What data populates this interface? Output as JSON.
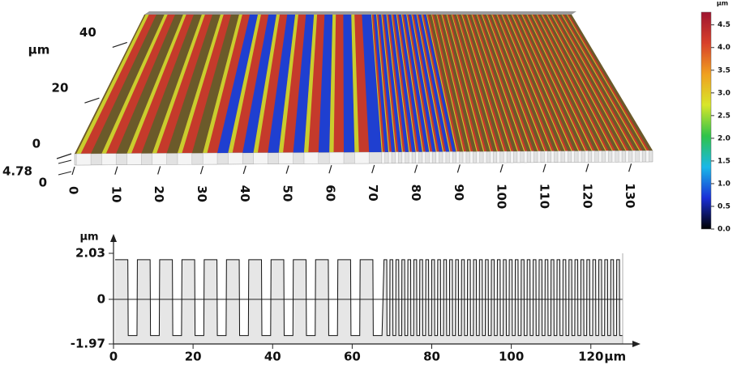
{
  "chart_data": [
    {
      "type": "surface3d",
      "xlim": [
        0,
        135
      ],
      "xticks": [
        0,
        10,
        20,
        30,
        40,
        50,
        60,
        70,
        80,
        90,
        100,
        110,
        120,
        130
      ],
      "ylim": [
        0,
        50
      ],
      "yticks": [
        0,
        20,
        40
      ],
      "ylabel": "µm",
      "zticks": [
        4.78,
        0
      ],
      "colorbar": {
        "label": "µm",
        "lim": [
          0,
          4.78
        ],
        "colormap": [
          "#000000",
          "#1a2fd6",
          "#19b8e8",
          "#2fc34a",
          "#d8e62a",
          "#f0a020",
          "#d8402a",
          "#9e1530"
        ],
        "ticks": [
          {
            "value": 0,
            "label": "0.0"
          },
          {
            "value": 0.5,
            "label": "0.5"
          },
          {
            "value": 1,
            "label": "1.0"
          },
          {
            "value": 1.5,
            "label": "1.5"
          },
          {
            "value": 2,
            "label": "2.0"
          },
          {
            "value": 2.5,
            "label": "2.5"
          },
          {
            "value": 3,
            "label": "3.0"
          },
          {
            "value": 3.5,
            "label": "3.5"
          },
          {
            "value": 4,
            "label": "4.0"
          },
          {
            "value": 4.5,
            "label": "4.5"
          }
        ]
      }
    },
    {
      "type": "line",
      "ylabel": "µm",
      "xlabel": "µm",
      "xlim": [
        0,
        128
      ],
      "xticks": [
        0,
        20,
        40,
        60,
        80,
        100,
        120
      ],
      "ylim": [
        -1.97,
        2.03
      ],
      "yticks": [
        2.03,
        0,
        -1.97
      ],
      "color": "#111111",
      "fill": "#e6e6e6",
      "x": [
        0.4,
        3.6,
        3.7,
        5.9,
        6,
        9.2,
        9.3,
        11.5,
        11.6,
        14.8,
        14.9,
        17.1,
        17.2,
        20.4,
        20.5,
        22.7,
        22.8,
        26,
        26.1,
        28.3,
        28.4,
        31.6,
        31.7,
        33.9,
        34,
        37.2,
        37.3,
        39.5,
        39.6,
        42.8,
        42.9,
        45.1,
        45.2,
        48.4,
        48.5,
        50.7,
        50.8,
        54,
        54.1,
        56.3,
        56.4,
        59.6,
        59.7,
        61.9,
        62,
        65.2,
        65.3,
        67.5,
        68,
        68.7,
        68.75,
        69.45,
        69.5,
        70.2,
        70.25,
        70.95,
        71,
        71.7,
        71.75,
        72.45,
        72.5,
        73.2,
        73.25,
        73.95,
        74,
        74.7,
        74.75,
        75.45,
        75.5,
        76.2,
        76.25,
        76.95,
        77,
        77.7,
        77.75,
        78.45,
        78.5,
        79.2,
        79.25,
        79.95,
        80,
        80.7,
        80.75,
        81.45,
        81.5,
        82.2,
        82.25,
        82.95,
        83,
        83.7,
        83.75,
        84.45,
        84.5,
        85.2,
        85.25,
        85.95,
        86,
        86.7,
        86.75,
        87.45,
        87.5,
        88.2,
        88.25,
        88.95,
        89,
        89.7,
        89.75,
        90.45,
        90.5,
        91.2,
        91.25,
        91.95,
        92,
        92.7,
        92.75,
        93.45,
        93.5,
        94.2,
        94.25,
        94.95,
        95,
        95.7,
        95.75,
        96.45,
        96.5,
        97.2,
        97.25,
        97.95,
        98,
        98.7,
        98.75,
        99.45,
        99.5,
        100.2,
        100.25,
        100.95,
        101,
        101.7,
        101.75,
        102.45,
        102.5,
        103.2,
        103.25,
        103.95,
        104,
        104.7,
        104.75,
        105.45,
        105.5,
        106.2,
        106.25,
        106.95,
        107,
        107.7,
        107.75,
        108.45,
        108.5,
        109.2,
        109.25,
        109.95,
        110,
        110.7,
        110.75,
        111.45,
        111.5,
        112.2,
        112.25,
        112.95,
        113,
        113.7,
        113.75,
        114.45,
        114.5,
        115.2,
        115.25,
        115.95,
        116,
        116.7,
        116.75,
        117.45,
        117.5,
        118.2,
        118.25,
        118.95,
        119,
        119.7,
        119.75,
        120.45,
        120.5,
        121.2,
        121.25,
        121.95,
        122,
        122.7,
        122.75,
        123.45,
        123.5,
        124.2,
        124.25,
        124.95,
        125,
        125.7,
        125.75,
        126.45,
        126.5,
        127.2,
        127.25,
        127.95
      ],
      "values": [
        1.75,
        1.75,
        -1.6,
        -1.6,
        1.75,
        1.75,
        -1.6,
        -1.6,
        1.75,
        1.75,
        -1.6,
        -1.6,
        1.75,
        1.75,
        -1.6,
        -1.6,
        1.75,
        1.75,
        -1.6,
        -1.6,
        1.75,
        1.75,
        -1.6,
        -1.6,
        1.75,
        1.75,
        -1.6,
        -1.6,
        1.75,
        1.75,
        -1.6,
        -1.6,
        1.75,
        1.75,
        -1.6,
        -1.6,
        1.75,
        1.75,
        -1.6,
        -1.6,
        1.75,
        1.75,
        -1.6,
        -1.6,
        1.75,
        1.75,
        -1.6,
        -1.6,
        1.75,
        1.75,
        -1.6,
        -1.6,
        1.75,
        1.75,
        -1.6,
        -1.6,
        1.75,
        1.75,
        -1.6,
        -1.6,
        1.75,
        1.75,
        -1.6,
        -1.6,
        1.75,
        1.75,
        -1.6,
        -1.6,
        1.75,
        1.75,
        -1.6,
        -1.6,
        1.75,
        1.75,
        -1.6,
        -1.6,
        1.75,
        1.75,
        -1.6,
        -1.6,
        1.75,
        1.75,
        -1.6,
        -1.6,
        1.75,
        1.75,
        -1.6,
        -1.6,
        1.75,
        1.75,
        -1.6,
        -1.6,
        1.75,
        1.75,
        -1.6,
        -1.6,
        1.75,
        1.75,
        -1.6,
        -1.6,
        1.75,
        1.75,
        -1.6,
        -1.6,
        1.75,
        1.75,
        -1.6,
        -1.6,
        1.75,
        1.75,
        -1.6,
        -1.6,
        1.75,
        1.75,
        -1.6,
        -1.6,
        1.75,
        1.75,
        -1.6,
        -1.6,
        1.75,
        1.75,
        -1.6,
        -1.6,
        1.75,
        1.75,
        -1.6,
        -1.6,
        1.75,
        1.75,
        -1.6,
        -1.6,
        1.75,
        1.75,
        -1.6,
        -1.6,
        1.75,
        1.75,
        -1.6,
        -1.6,
        1.75,
        1.75,
        -1.6,
        -1.6,
        1.75,
        1.75,
        -1.6,
        -1.6,
        1.75,
        1.75,
        -1.6,
        -1.6,
        1.75,
        1.75,
        -1.6,
        -1.6,
        1.75,
        1.75,
        -1.6,
        -1.6,
        1.75,
        1.75,
        -1.6,
        -1.6,
        1.75,
        1.75,
        -1.6,
        -1.6,
        1.75,
        1.75,
        -1.6,
        -1.6,
        1.75,
        1.75,
        -1.6,
        -1.6,
        1.75,
        1.75,
        -1.6,
        -1.6,
        1.75,
        1.75,
        -1.6,
        -1.6,
        1.75,
        1.75,
        -1.6,
        -1.6,
        1.75,
        1.75,
        -1.6,
        -1.6,
        1.75,
        1.75,
        -1.6,
        -1.6,
        1.75,
        1.75,
        -1.6,
        -1.6,
        1.75,
        1.75,
        -1.6,
        -1.6,
        1.75,
        1.75,
        -1.6,
        -1.6
      ]
    }
  ]
}
